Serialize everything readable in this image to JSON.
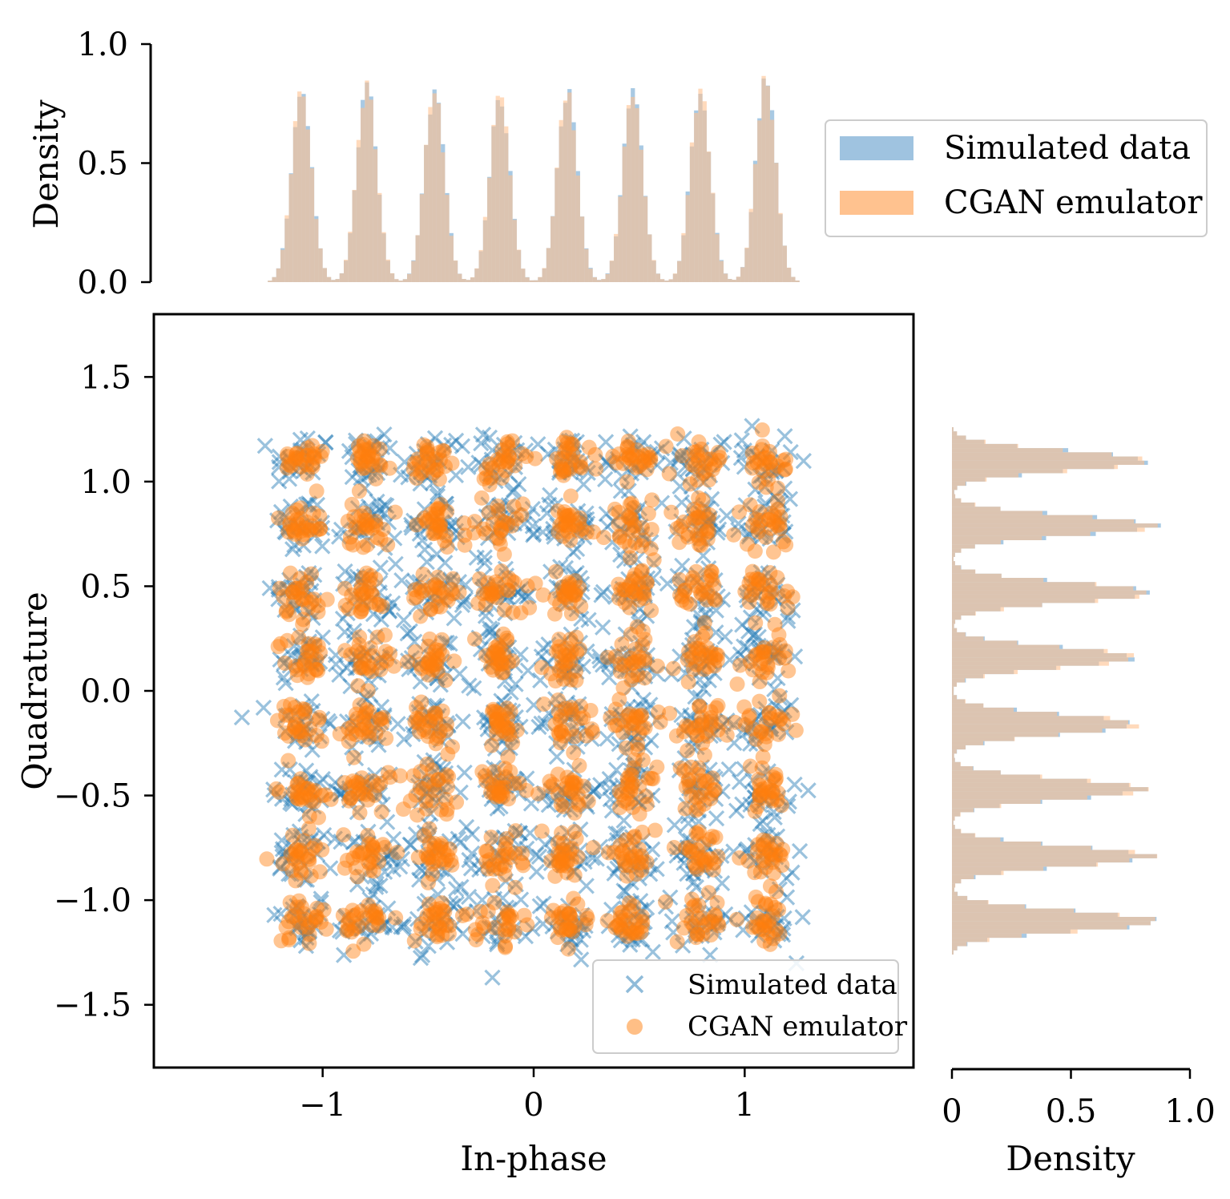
{
  "chart_data": [
    {
      "type": "scatter",
      "title": "",
      "xlabel": "In-phase",
      "ylabel": "Quadrature",
      "xlim": [
        -1.8,
        1.8
      ],
      "ylim": [
        -1.8,
        1.8
      ],
      "xticks": [
        -1,
        0,
        1
      ],
      "xtick_labels": [
        "−1",
        "0",
        "1"
      ],
      "yticks": [
        1.5,
        1.0,
        0.5,
        0.0,
        -0.5,
        -1.0,
        -1.5
      ],
      "ytick_labels": [
        "1.5",
        "1.0",
        "0.5",
        "0.0",
        "−0.5",
        "−1.0",
        "−1.5"
      ],
      "constellation_levels": [
        -1.1,
        -0.79,
        -0.47,
        -0.16,
        0.16,
        0.47,
        0.79,
        1.1
      ],
      "series": [
        {
          "name": "Simulated data",
          "marker": "x",
          "color": "#1f77b4",
          "cluster_spread": 0.07
        },
        {
          "name": "CGAN emulator",
          "marker": "o",
          "color": "#ff7f0e",
          "cluster_spread": 0.055
        }
      ],
      "legend": {
        "location": "lower-right",
        "entries": [
          "Simulated data",
          "CGAN emulator"
        ]
      }
    },
    {
      "type": "histogram",
      "orientation": "vertical",
      "position": "top-marginal",
      "ylabel": "Density",
      "ylim": [
        0.0,
        1.0
      ],
      "yticks": [
        1.0,
        0.5,
        0.0
      ],
      "ytick_labels": [
        "1.0",
        "0.5",
        "0.0"
      ],
      "peak_centers": [
        -1.1,
        -0.79,
        -0.47,
        -0.16,
        0.16,
        0.47,
        0.79,
        1.1
      ],
      "peak_density": [
        0.8,
        0.82,
        0.8,
        0.78,
        0.8,
        0.8,
        0.8,
        0.86
      ],
      "series": [
        {
          "name": "Simulated data",
          "color": "#9fc3e0"
        },
        {
          "name": "CGAN emulator",
          "color": "#ffc28f"
        }
      ],
      "legend": {
        "location": "top-right",
        "entries": [
          "Simulated data",
          "CGAN emulator"
        ]
      }
    },
    {
      "type": "histogram",
      "orientation": "horizontal",
      "position": "right-marginal",
      "xlabel": "Density",
      "xlim": [
        0.0,
        1.0
      ],
      "xticks": [
        0,
        0.5,
        1.0
      ],
      "xtick_labels": [
        "0",
        "0.5",
        "1.0"
      ],
      "peak_centers": [
        1.1,
        0.79,
        0.47,
        0.16,
        -0.16,
        -0.47,
        -0.79,
        -1.1
      ],
      "peak_density": [
        0.82,
        0.85,
        0.85,
        0.78,
        0.78,
        0.8,
        0.84,
        0.88
      ],
      "series": [
        {
          "name": "Simulated data",
          "color": "#9fc3e0"
        },
        {
          "name": "CGAN emulator",
          "color": "#ffc28f"
        }
      ]
    }
  ]
}
